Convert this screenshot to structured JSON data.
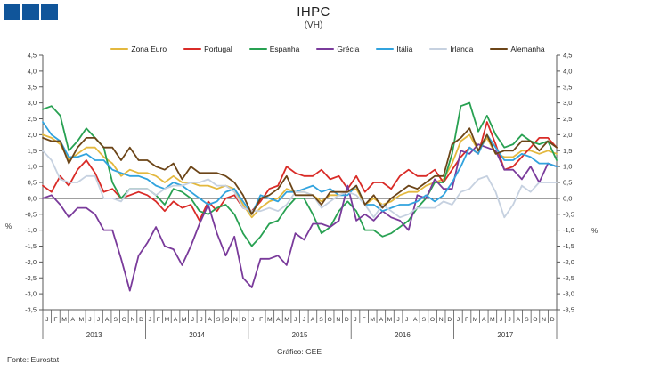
{
  "header": {
    "title": "IHPC",
    "subtitle": "(VH)",
    "logo_color": "#10559A"
  },
  "footer": {
    "source": "Fonte:  Eurostat",
    "credit": "Gráfico: GEE"
  },
  "chart_data": {
    "type": "line",
    "title": "IHPC",
    "subtitle": "(VH)",
    "ylabel_left": "%",
    "ylabel_right": "%",
    "ylim": [
      -3.5,
      4.5
    ],
    "y_tick_step": 0.5,
    "y_tick_labels": [
      "4,5",
      "4,0",
      "3,5",
      "3,0",
      "2,5",
      "2,0",
      "1,5",
      "1,0",
      "0,5",
      "0,0",
      "-0,5",
      "-1,0",
      "-1,5",
      "-2,0",
      "-2,5",
      "-3,0",
      "-3,5"
    ],
    "month_letters": [
      "J",
      "F",
      "M",
      "A",
      "M",
      "J",
      "J",
      "A",
      "S",
      "O",
      "N",
      "D"
    ],
    "years": [
      "2013",
      "2014",
      "2015",
      "2016",
      "2017"
    ],
    "zero_line": true,
    "grid": false,
    "legend_position": "top",
    "series": [
      {
        "name": "Zona Euro",
        "color": "#E3B83E",
        "values": [
          2.0,
          1.9,
          1.7,
          1.2,
          1.4,
          1.6,
          1.6,
          1.3,
          1.1,
          0.7,
          0.9,
          0.8,
          0.8,
          0.7,
          0.5,
          0.7,
          0.5,
          0.5,
          0.4,
          0.4,
          0.3,
          0.4,
          0.3,
          -0.2,
          -0.6,
          -0.3,
          -0.1,
          0.0,
          0.3,
          0.2,
          0.2,
          0.1,
          -0.1,
          0.1,
          0.1,
          0.2,
          0.3,
          -0.2,
          0.0,
          -0.2,
          -0.1,
          0.1,
          0.2,
          0.2,
          0.4,
          0.5,
          0.6,
          1.1,
          1.8,
          2.0,
          1.5,
          1.9,
          1.4,
          1.3,
          1.3,
          1.5,
          1.5,
          1.4,
          1.5,
          1.4
        ]
      },
      {
        "name": "Portugal",
        "color": "#D92B27",
        "values": [
          0.4,
          0.2,
          0.7,
          0.4,
          0.9,
          1.2,
          0.8,
          0.2,
          0.3,
          0.0,
          0.1,
          0.2,
          0.1,
          -0.1,
          -0.4,
          -0.1,
          -0.3,
          -0.2,
          -0.7,
          -0.1,
          -0.4,
          0.0,
          0.1,
          -0.3,
          -0.4,
          -0.1,
          0.3,
          0.4,
          1.0,
          0.8,
          0.7,
          0.7,
          0.9,
          0.6,
          0.7,
          0.3,
          0.7,
          0.2,
          0.5,
          0.5,
          0.3,
          0.7,
          0.9,
          0.7,
          0.7,
          0.9,
          0.5,
          0.9,
          1.3,
          1.6,
          1.4,
          2.4,
          1.7,
          0.9,
          1.0,
          1.3,
          1.6,
          1.9,
          1.9,
          1.6
        ]
      },
      {
        "name": "Espanha",
        "color": "#28A152",
        "values": [
          2.8,
          2.9,
          2.6,
          1.5,
          1.8,
          2.2,
          1.9,
          1.6,
          0.5,
          0.0,
          0.3,
          0.3,
          0.3,
          0.1,
          -0.2,
          0.3,
          0.2,
          0.0,
          -0.4,
          -0.5,
          -0.3,
          -0.2,
          -0.5,
          -1.1,
          -1.5,
          -1.2,
          -0.8,
          -0.7,
          -0.3,
          0.0,
          0.0,
          -0.5,
          -1.1,
          -0.9,
          -0.4,
          -0.1,
          -0.4,
          -1.0,
          -1.0,
          -1.2,
          -1.1,
          -0.9,
          -0.7,
          -0.3,
          0.0,
          0.5,
          0.5,
          1.4,
          2.9,
          3.0,
          2.1,
          2.6,
          2.0,
          1.6,
          1.7,
          2.0,
          1.8,
          1.7,
          1.8,
          1.2
        ]
      },
      {
        "name": "Grécia",
        "color": "#7A3B9B",
        "values": [
          0.0,
          0.1,
          -0.2,
          -0.6,
          -0.3,
          -0.3,
          -0.5,
          -1.0,
          -1.0,
          -1.9,
          -2.9,
          -1.8,
          -1.4,
          -0.9,
          -1.5,
          -1.6,
          -2.1,
          -1.5,
          -0.8,
          -0.2,
          -1.1,
          -1.8,
          -1.2,
          -2.5,
          -2.8,
          -1.9,
          -1.9,
          -1.8,
          -2.1,
          -1.1,
          -1.3,
          -0.8,
          -0.8,
          -0.9,
          -0.7,
          0.4,
          -0.7,
          -0.5,
          -0.7,
          -0.4,
          -0.6,
          -0.7,
          -1.0,
          0.1,
          0.0,
          0.6,
          0.3,
          0.3,
          1.5,
          1.4,
          1.7,
          1.6,
          1.5,
          0.9,
          0.9,
          0.6,
          1.0,
          0.5,
          1.1,
          1.0
        ]
      },
      {
        "name": "Itália",
        "color": "#31A3DE",
        "values": [
          2.4,
          2.0,
          1.8,
          1.3,
          1.3,
          1.4,
          1.2,
          1.2,
          0.9,
          0.8,
          0.7,
          0.7,
          0.6,
          0.4,
          0.3,
          0.5,
          0.4,
          0.2,
          0.0,
          -0.2,
          -0.1,
          0.2,
          0.3,
          -0.1,
          -0.5,
          0.1,
          0.0,
          -0.1,
          0.2,
          0.2,
          0.3,
          0.4,
          0.2,
          0.3,
          0.1,
          0.1,
          0.4,
          -0.2,
          -0.2,
          -0.4,
          -0.3,
          -0.2,
          -0.2,
          -0.1,
          0.1,
          -0.1,
          0.1,
          0.5,
          1.0,
          1.6,
          1.4,
          2.0,
          1.6,
          1.2,
          1.2,
          1.4,
          1.3,
          1.1,
          1.1,
          1.0
        ]
      },
      {
        "name": "Irlanda",
        "color": "#C6D1E0",
        "values": [
          1.5,
          1.2,
          0.6,
          0.5,
          0.5,
          0.7,
          0.7,
          0.0,
          0.0,
          -0.1,
          0.3,
          0.3,
          0.3,
          0.1,
          0.3,
          0.4,
          0.4,
          0.5,
          0.5,
          0.6,
          0.4,
          0.4,
          0.2,
          -0.3,
          -0.4,
          -0.4,
          -0.3,
          -0.4,
          -0.2,
          0.2,
          0.2,
          0.1,
          -0.3,
          -0.1,
          0.1,
          0.2,
          0.1,
          -0.2,
          -0.6,
          -0.2,
          -0.4,
          -0.6,
          -0.5,
          -0.3,
          -0.3,
          -0.3,
          -0.1,
          -0.2,
          0.2,
          0.3,
          0.6,
          0.7,
          0.2,
          -0.6,
          -0.2,
          0.4,
          0.2,
          0.5,
          0.5,
          0.5
        ]
      },
      {
        "name": "Alemanha",
        "color": "#6C4518",
        "values": [
          1.9,
          1.8,
          1.8,
          1.1,
          1.6,
          1.9,
          1.9,
          1.6,
          1.6,
          1.2,
          1.6,
          1.2,
          1.2,
          1.0,
          0.9,
          1.1,
          0.6,
          1.0,
          0.8,
          0.8,
          0.8,
          0.7,
          0.5,
          0.1,
          -0.5,
          0.0,
          0.1,
          0.3,
          0.7,
          0.1,
          0.1,
          0.1,
          -0.2,
          0.2,
          0.2,
          0.2,
          0.4,
          -0.2,
          0.1,
          -0.3,
          0.0,
          0.2,
          0.4,
          0.3,
          0.5,
          0.7,
          0.7,
          1.7,
          1.9,
          2.2,
          1.5,
          2.0,
          1.4,
          1.5,
          1.5,
          1.8,
          1.8,
          1.5,
          1.8,
          1.6
        ]
      }
    ]
  }
}
